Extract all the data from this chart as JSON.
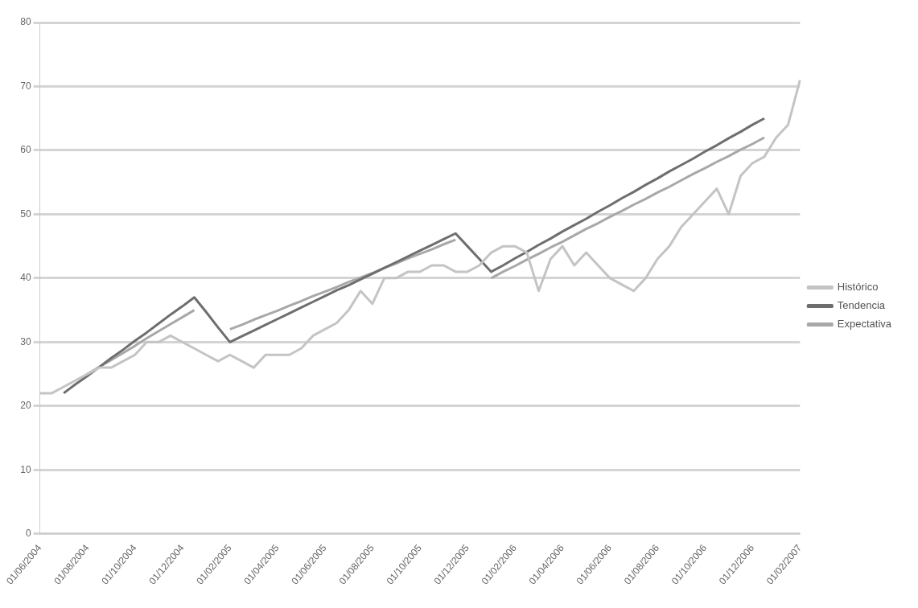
{
  "chart_data": {
    "type": "line",
    "categories": [
      "01/06/2004",
      null,
      null,
      null,
      "01/08/2004",
      null,
      null,
      null,
      "01/10/2004",
      null,
      null,
      null,
      "01/12/2004",
      null,
      null,
      null,
      "01/02/2005",
      null,
      null,
      null,
      "01/04/2005",
      null,
      null,
      null,
      "01/06/2005",
      null,
      null,
      null,
      "01/08/2005",
      null,
      null,
      null,
      "01/10/2005",
      null,
      null,
      null,
      "01/12/2005",
      null,
      null,
      null,
      "01/02/2006",
      null,
      null,
      null,
      "01/04/2006",
      null,
      null,
      null,
      "01/06/2006",
      null,
      null,
      null,
      "01/08/2006",
      null,
      null,
      null,
      "01/10/2006",
      null,
      null,
      null,
      "01/12/2006",
      null,
      null,
      null,
      "01/02/2007"
    ],
    "series": [
      {
        "name": "Histórico",
        "color": "#c4c4c4",
        "values": [
          22,
          22,
          23,
          24,
          25,
          26,
          26,
          27,
          28,
          30,
          30,
          31,
          30,
          29,
          28,
          27,
          28,
          27,
          26,
          28,
          28,
          28,
          29,
          31,
          32,
          33,
          35,
          38,
          36,
          40,
          40,
          41,
          41,
          42,
          42,
          41,
          41,
          42,
          44,
          45,
          45,
          44,
          38,
          43,
          45,
          42,
          44,
          42,
          40,
          39,
          38,
          40,
          43,
          45,
          48,
          50,
          52,
          54,
          50,
          56,
          58,
          59,
          62,
          64,
          71
        ]
      },
      {
        "name": "Tendencia",
        "color": "#6e6e6e",
        "values": [
          null,
          null,
          22,
          23.4,
          24.7,
          26.1,
          27.5,
          28.8,
          30.2,
          31.5,
          32.9,
          34.3,
          35.6,
          37,
          34.7,
          32.3,
          30,
          30.9,
          31.8,
          32.7,
          33.6,
          34.5,
          35.4,
          36.3,
          37.2,
          38.1,
          38.9,
          39.8,
          40.7,
          41.6,
          42.5,
          43.4,
          44.3,
          45.2,
          46.1,
          47,
          45,
          43,
          41,
          42,
          43.1,
          44.1,
          45.2,
          46.2,
          47.3,
          48.3,
          49.3,
          50.4,
          51.4,
          52.5,
          53.5,
          54.6,
          55.6,
          56.7,
          57.7,
          58.7,
          59.8,
          60.8,
          61.9,
          62.9,
          64,
          65,
          null,
          null,
          null
        ]
      },
      {
        "name": "Expectativa",
        "color": "#a8a8a8",
        "values": [
          null,
          null,
          null,
          null,
          25,
          26.1,
          27.2,
          28.3,
          29.4,
          30.6,
          31.7,
          32.8,
          33.9,
          35,
          null,
          null,
          32,
          32.7,
          33.5,
          34.2,
          34.9,
          35.7,
          36.4,
          37.2,
          37.9,
          38.6,
          39.4,
          40.1,
          40.8,
          41.6,
          42.3,
          43.1,
          43.8,
          44.5,
          45.3,
          46,
          null,
          null,
          40,
          41,
          41.9,
          42.9,
          43.8,
          44.8,
          45.7,
          46.7,
          47.7,
          48.6,
          49.6,
          50.5,
          51.5,
          52.4,
          53.4,
          54.3,
          55.3,
          56.3,
          57.2,
          58.2,
          59.1,
          60.1,
          61,
          62,
          null,
          null,
          null
        ]
      }
    ],
    "ylim": [
      0,
      80
    ],
    "yticks": [
      0,
      10,
      20,
      30,
      40,
      50,
      60,
      70,
      80
    ],
    "grid": "y",
    "legend": "right",
    "marker": "none",
    "line_style": "solid"
  }
}
